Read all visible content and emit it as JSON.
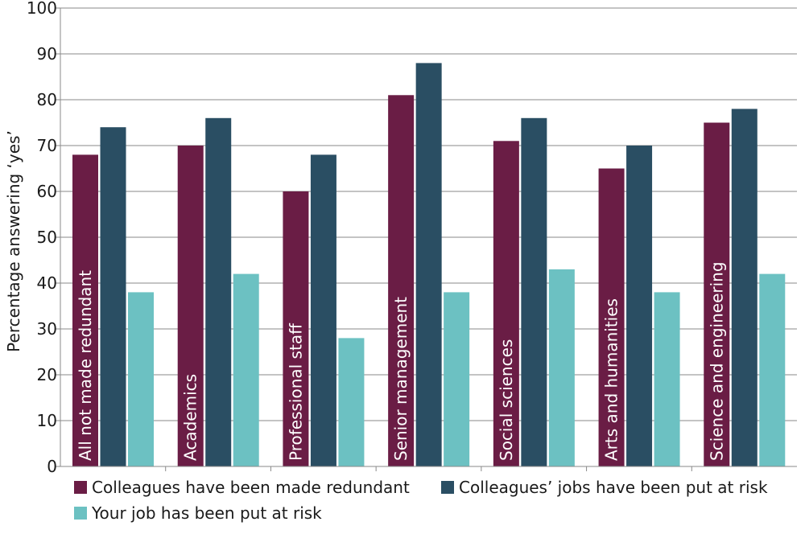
{
  "chart_data": {
    "type": "bar",
    "title": "",
    "xlabel": "",
    "ylabel": "Percentage answering ‘yes’",
    "ylim": [
      0,
      100
    ],
    "yticks": [
      0,
      10,
      20,
      30,
      40,
      50,
      60,
      70,
      80,
      90,
      100
    ],
    "grid": true,
    "legend_position": "bottom",
    "categories": [
      "All not made redundant",
      "Academics",
      "Professional staff",
      "Senior management",
      "Social sciences",
      "Arts and humanities",
      "Science and engineering"
    ],
    "series": [
      {
        "name": "Colleagues have been made redundant",
        "color": "#6a1d45",
        "values": [
          68,
          70,
          60,
          81,
          71,
          65,
          75
        ]
      },
      {
        "name": "Colleagues’ jobs have been put at risk",
        "color": "#2a4e63",
        "values": [
          74,
          76,
          68,
          88,
          76,
          70,
          78
        ]
      },
      {
        "name": "Your job has been put at risk",
        "color": "#6cc1c2",
        "values": [
          38,
          42,
          28,
          38,
          43,
          38,
          42
        ]
      }
    ]
  }
}
